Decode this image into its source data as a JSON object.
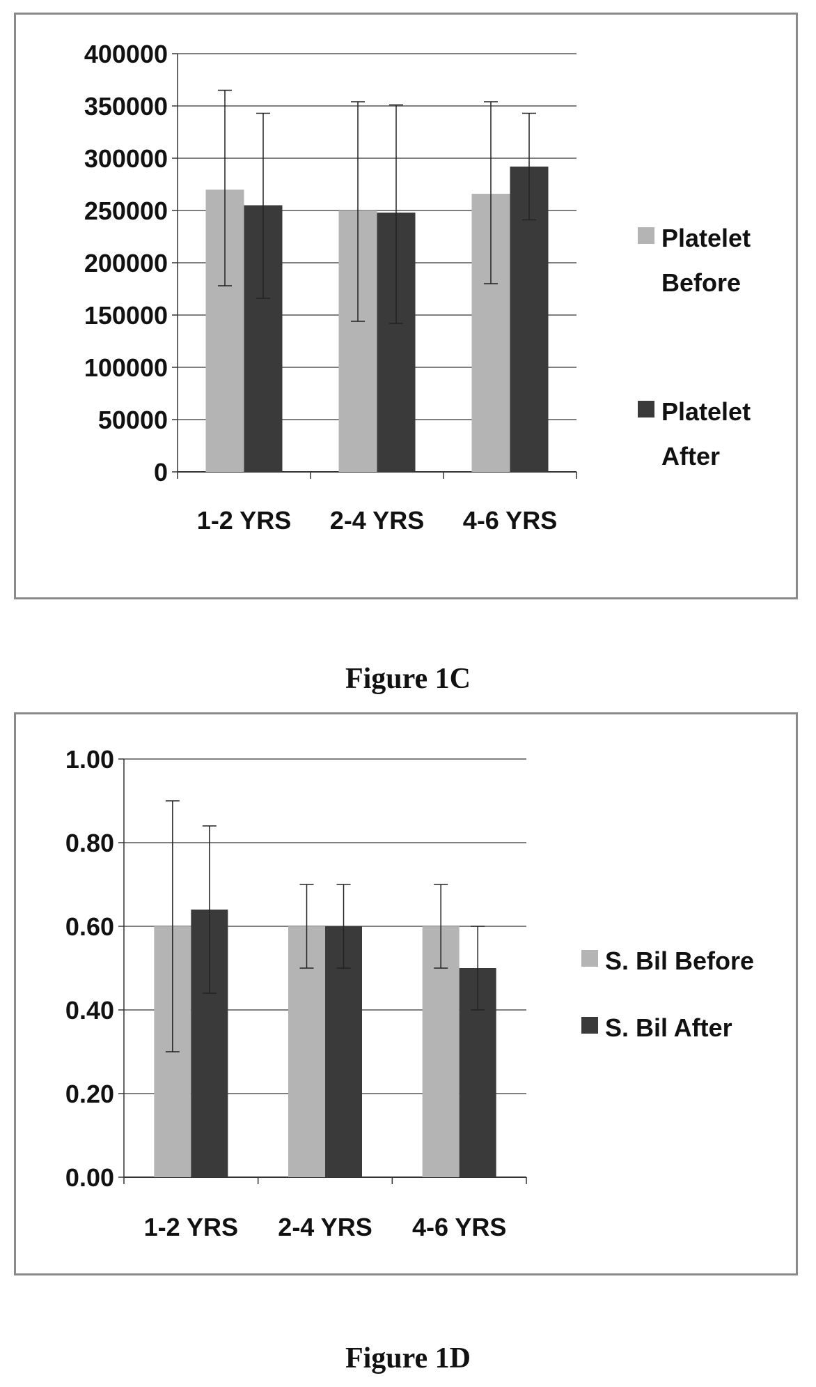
{
  "chart_data": [
    {
      "type": "bar",
      "caption": "Figure 1C",
      "categories": [
        "1-2 YRS",
        "2-4 YRS",
        "4-6 YRS"
      ],
      "series": [
        {
          "name": "Platelet Before",
          "color": "#b4b4b4",
          "values": [
            270000,
            250000,
            266000
          ],
          "error_low": [
            178000,
            144000,
            180000
          ],
          "error_high": [
            365000,
            354000,
            354000
          ]
        },
        {
          "name": "Platelet After",
          "color": "#3a3a3a",
          "values": [
            255000,
            248000,
            292000
          ],
          "error_low": [
            166000,
            142000,
            241000
          ],
          "error_high": [
            343000,
            351000,
            343000
          ]
        }
      ],
      "ylim": [
        0,
        400000
      ],
      "yticks": [
        "400000",
        "350000",
        "300000",
        "250000",
        "200000",
        "150000",
        "100000",
        "50000",
        "0"
      ],
      "legend_labels": [
        [
          "Platelet",
          "Before"
        ],
        [
          "Platelet",
          "After"
        ]
      ],
      "legend_position": "right",
      "grid": true
    },
    {
      "type": "bar",
      "caption": "Figure 1D",
      "categories": [
        "1-2 YRS",
        "2-4 YRS",
        "4-6 YRS"
      ],
      "series": [
        {
          "name": "S. Bil Before",
          "color": "#b4b4b4",
          "values": [
            0.6,
            0.6,
            0.6
          ],
          "error_low": [
            0.3,
            0.5,
            0.5
          ],
          "error_high": [
            0.9,
            0.7,
            0.7
          ]
        },
        {
          "name": "S. Bil After",
          "color": "#3a3a3a",
          "values": [
            0.64,
            0.6,
            0.5
          ],
          "error_low": [
            0.44,
            0.5,
            0.4
          ],
          "error_high": [
            0.84,
            0.7,
            0.6
          ]
        }
      ],
      "ylim": [
        0,
        1
      ],
      "yticks": [
        "1.00",
        "0.80",
        "0.60",
        "0.40",
        "0.20",
        "0.00"
      ],
      "legend_labels": [
        [
          "S. Bil Before"
        ],
        [
          "S. Bil After"
        ]
      ],
      "legend_position": "right",
      "grid": true
    }
  ]
}
